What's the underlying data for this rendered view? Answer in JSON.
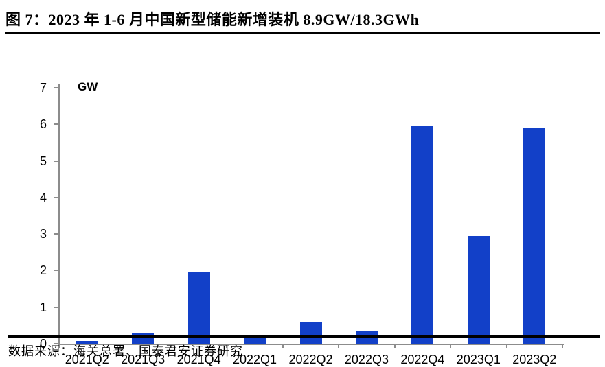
{
  "figure": {
    "title": "图 7：2023 年 1-6 月中国新型储能新增装机 8.9GW/18.3GWh",
    "source": "数据来源：海关总署、国泰君安证券研究"
  },
  "chart_data": {
    "type": "bar",
    "title": "2023 年 1-6 月中国新型储能新增装机 8.9GW/18.3GWh",
    "xlabel": "",
    "ylabel": "GW",
    "categories": [
      "2021Q2",
      "2021Q3",
      "2021Q4",
      "2022Q1",
      "2022Q2",
      "2022Q3",
      "2022Q4",
      "2023Q1",
      "2023Q2"
    ],
    "values": [
      0.08,
      0.3,
      1.95,
      0.2,
      0.6,
      0.35,
      5.97,
      2.95,
      5.9
    ],
    "ylim": [
      0,
      7
    ],
    "ytick_step": 1,
    "grid": false,
    "legend": "none",
    "bar_color": "#1240c8",
    "axis_color": "#8c8c8c",
    "label_color": "#000000"
  }
}
